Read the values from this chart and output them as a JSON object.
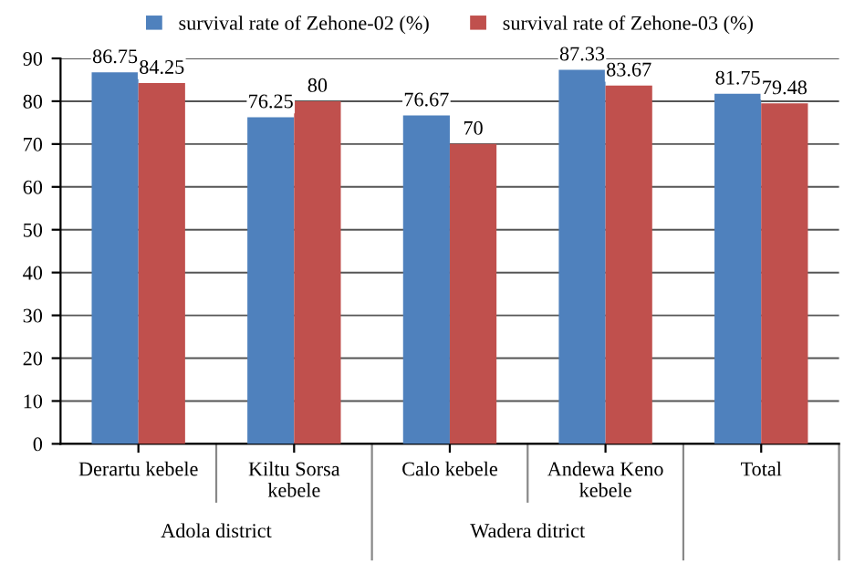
{
  "chart_data": {
    "type": "bar",
    "categories": [
      "Derartu kebele",
      "Kiltu Sorsa\nkebele",
      "Calo kebele",
      "Andewa Keno\nkebele",
      "Total"
    ],
    "series": [
      {
        "name": "survival rate of Zehone-02 (%)",
        "color": "#4f81bd",
        "values": [
          86.75,
          76.25,
          76.67,
          87.33,
          81.75
        ]
      },
      {
        "name": "survival rate of Zehone-03 (%)",
        "color": "#c0504d",
        "values": [
          84.25,
          80,
          70,
          83.67,
          79.48
        ]
      }
    ],
    "annotations": [
      "Adola district",
      "Wadera ditrict"
    ],
    "ylim": [
      0,
      90
    ],
    "yticks": [
      0,
      10,
      20,
      30,
      40,
      50,
      60,
      70,
      80,
      90
    ],
    "grid": "y",
    "legend": "top",
    "data_labels": true
  }
}
